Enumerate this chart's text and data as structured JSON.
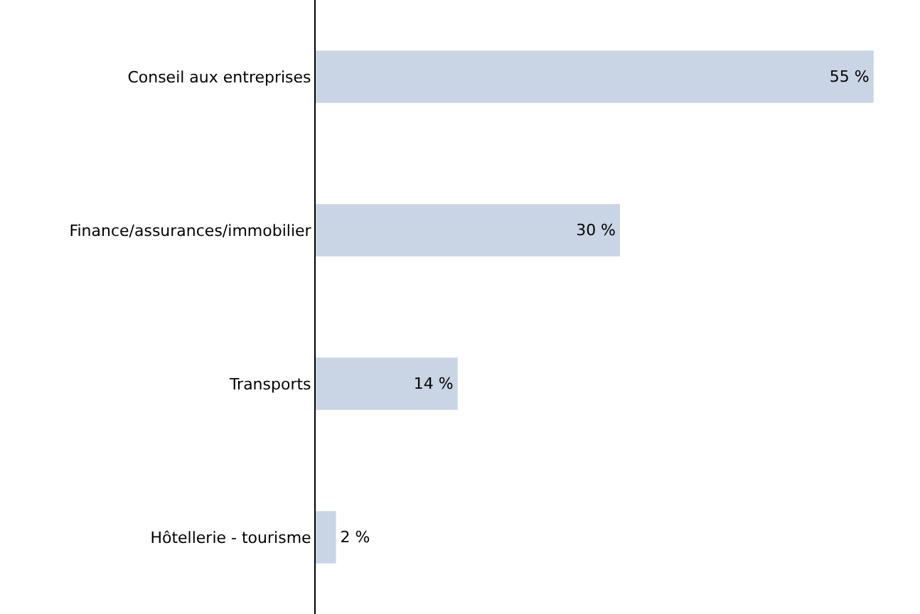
{
  "chart_data": {
    "type": "bar",
    "orientation": "horizontal",
    "categories": [
      "Conseil aux entreprises",
      "Finance/assurances/immobilier",
      "Transports",
      "Hôtellerie - tourisme"
    ],
    "values": [
      55,
      30,
      14,
      2
    ],
    "value_labels": [
      "55 %",
      "30 %",
      "14 %",
      "2 %"
    ],
    "color": "#c9d5e4",
    "legend": false,
    "tick_labels": "y"
  }
}
